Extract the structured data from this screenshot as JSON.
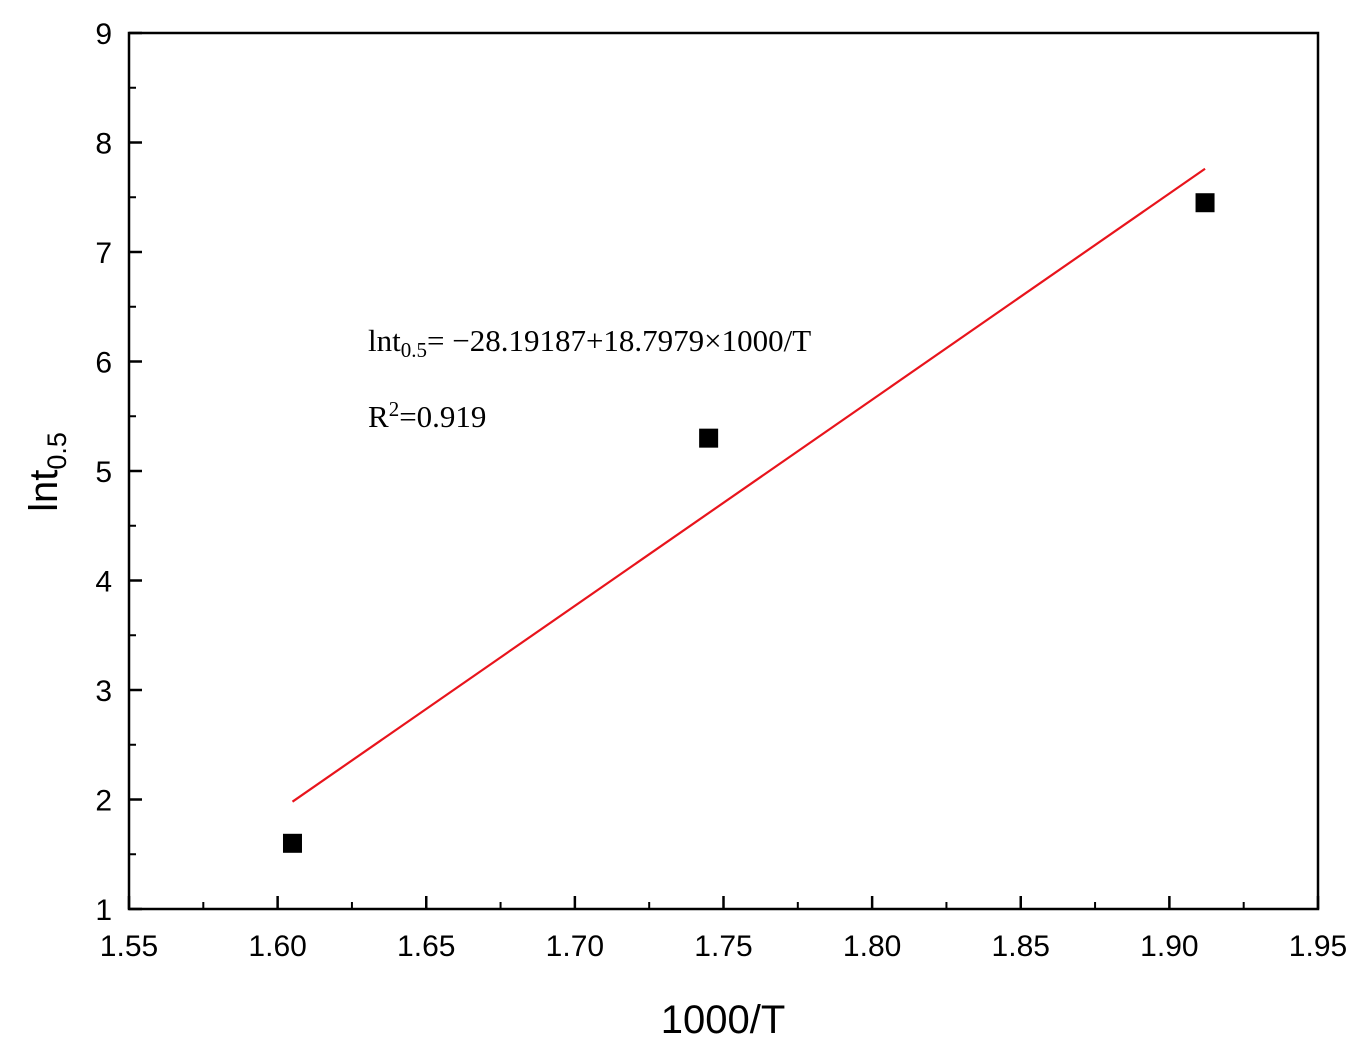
{
  "chart_data": {
    "type": "scatter",
    "title": "",
    "xlabel": "1000/T",
    "ylabel": {
      "main": "lnt",
      "sub": "0.5"
    },
    "xlim": [
      1.55,
      1.95
    ],
    "ylim": [
      1,
      9
    ],
    "x_ticks": [
      "1.55",
      "1.60",
      "1.65",
      "1.70",
      "1.75",
      "1.80",
      "1.85",
      "1.90",
      "1.95"
    ],
    "y_ticks": [
      "1",
      "2",
      "3",
      "4",
      "5",
      "6",
      "7",
      "8",
      "9"
    ],
    "grid": false,
    "series": [
      {
        "type": "scatter",
        "marker": "square",
        "color": "#000000",
        "points": [
          {
            "x": 1.605,
            "y": 1.6
          },
          {
            "x": 1.745,
            "y": 5.3
          },
          {
            "x": 1.912,
            "y": 7.45
          }
        ]
      },
      {
        "type": "line",
        "color": "#e8141c",
        "points": [
          {
            "x": 1.605,
            "y": 1.98
          },
          {
            "x": 1.912,
            "y": 7.76
          }
        ]
      }
    ],
    "annotations": {
      "equation": {
        "lhs": "lnt",
        "sub": "0.5",
        "rhs": "= −28.19187+18.7979×1000/T"
      },
      "r_squared": {
        "prefix": "R",
        "sup": "2",
        "rest": "=0.919"
      }
    }
  }
}
